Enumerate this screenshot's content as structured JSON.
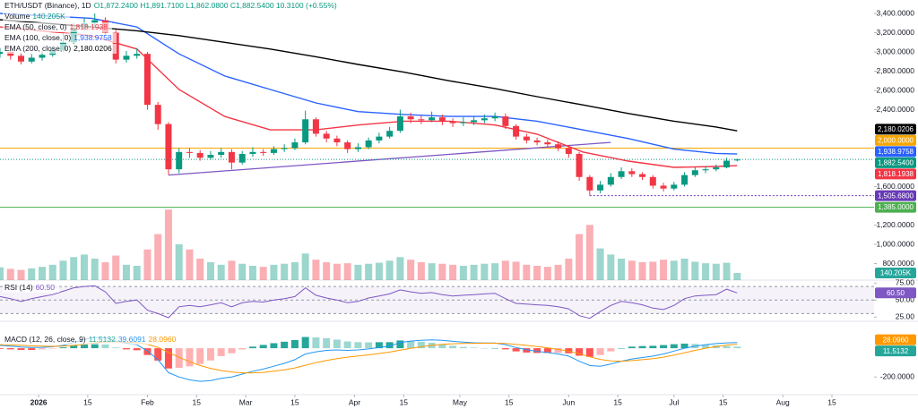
{
  "chart_data": {
    "type": "candlestick",
    "title": "ETH/USDT (Binance), 1D",
    "ohlc_text": "O1,872.2400 H1,891.7100 L1,862.0800 C1,882.5400 10.3100 (+0.55%)",
    "x": [
      -11,
      -8,
      -5,
      -2,
      1,
      4,
      7,
      10,
      13,
      16,
      19,
      22,
      25,
      28,
      31,
      34,
      37,
      40,
      43,
      46,
      49,
      52,
      55,
      58,
      61,
      64,
      67,
      70,
      73,
      76,
      79,
      82,
      85,
      88,
      91,
      94,
      97,
      100,
      103,
      106,
      109,
      112,
      115,
      118,
      121,
      124,
      127,
      130,
      133,
      136,
      139,
      142,
      145,
      148,
      151,
      154,
      157,
      160,
      163,
      166,
      169,
      172,
      175,
      178,
      181,
      184,
      187,
      190,
      193,
      196,
      199
    ],
    "open": [
      2980,
      3000,
      2960,
      2900,
      2940,
      2970,
      3020,
      3100,
      3250,
      3300,
      3330,
      3200,
      2920,
      2960,
      2980,
      2450,
      2250,
      1780,
      1960,
      1950,
      1900,
      1930,
      1960,
      1850,
      1940,
      1960,
      1950,
      1990,
      2000,
      2060,
      2300,
      2150,
      2100,
      2060,
      1990,
      2010,
      2080,
      2120,
      2180,
      2330,
      2300,
      2290,
      2320,
      2280,
      2260,
      2270,
      2290,
      2310,
      2330,
      2230,
      2120,
      2080,
      2060,
      2040,
      2000,
      1940,
      1700,
      1560,
      1620,
      1700,
      1760,
      1730,
      1700,
      1610,
      1580,
      1620,
      1720,
      1770,
      1780,
      1800,
      1872.24
    ],
    "high": [
      3040,
      3050,
      2990,
      2980,
      3010,
      3060,
      3200,
      3300,
      3360,
      3400,
      3360,
      3230,
      3010,
      3040,
      3000,
      2480,
      2270,
      2000,
      2000,
      1980,
      1970,
      2000,
      1990,
      1970,
      2010,
      1990,
      2020,
      2040,
      2100,
      2390,
      2320,
      2180,
      2130,
      2080,
      2050,
      2110,
      2160,
      2220,
      2400,
      2370,
      2340,
      2380,
      2350,
      2310,
      2320,
      2330,
      2350,
      2370,
      2360,
      2250,
      2150,
      2110,
      2090,
      2070,
      2030,
      1960,
      1720,
      1660,
      1740,
      1800,
      1790,
      1750,
      1720,
      1640,
      1650,
      1750,
      1800,
      1810,
      1830,
      1900,
      1891.71
    ],
    "low": [
      2940,
      2920,
      2870,
      2880,
      2910,
      2950,
      3000,
      3080,
      3220,
      3270,
      3170,
      2880,
      2890,
      2930,
      2400,
      2190,
      1720,
      1740,
      1900,
      1870,
      1880,
      1900,
      1780,
      1830,
      1910,
      1920,
      1930,
      1960,
      1980,
      2040,
      2120,
      2060,
      2020,
      1950,
      1960,
      1990,
      2050,
      2100,
      2160,
      2260,
      2250,
      2270,
      2240,
      2220,
      2230,
      2240,
      2260,
      2280,
      2200,
      2090,
      2050,
      2030,
      2010,
      1970,
      1900,
      1660,
      1505.68,
      1530,
      1600,
      1680,
      1700,
      1670,
      1580,
      1550,
      1560,
      1600,
      1700,
      1740,
      1760,
      1790,
      1862.08
    ],
    "close": [
      3000,
      2960,
      2900,
      2940,
      2970,
      3020,
      3100,
      3250,
      3300,
      3330,
      3200,
      2920,
      2960,
      2980,
      2450,
      2250,
      1780,
      1960,
      1950,
      1900,
      1930,
      1960,
      1850,
      1940,
      1960,
      1950,
      1990,
      2000,
      2060,
      2300,
      2150,
      2100,
      2060,
      1990,
      2010,
      2080,
      2120,
      2180,
      2330,
      2300,
      2290,
      2320,
      2280,
      2260,
      2270,
      2290,
      2310,
      2330,
      2230,
      2120,
      2080,
      2060,
      2040,
      2000,
      1940,
      1700,
      1560,
      1620,
      1700,
      1760,
      1730,
      1700,
      1610,
      1580,
      1620,
      1720,
      1770,
      1780,
      1800,
      1870,
      1882.54
    ],
    "up_color": "#089981",
    "down_color": "#f23645",
    "xlim": [
      -11,
      238
    ],
    "xticks": [
      {
        "value": 0,
        "label": "2026"
      },
      {
        "value": 14,
        "label": "15"
      },
      {
        "value": 31,
        "label": "Feb"
      },
      {
        "value": 45,
        "label": "15"
      },
      {
        "value": 59,
        "label": "Mar"
      },
      {
        "value": 73,
        "label": "15"
      },
      {
        "value": 90,
        "label": "Apr"
      },
      {
        "value": 104,
        "label": "15"
      },
      {
        "value": 120,
        "label": "May"
      },
      {
        "value": 134,
        "label": "15"
      },
      {
        "value": 151,
        "label": "Jun"
      },
      {
        "value": 165,
        "label": "15"
      },
      {
        "value": 181,
        "label": "Jul"
      },
      {
        "value": 195,
        "label": "15"
      },
      {
        "value": 212,
        "label": "Aug"
      },
      {
        "value": 226,
        "label": "15"
      }
    ],
    "ylim": [
      628,
      3540
    ],
    "yticks": [
      {
        "value": 3400,
        "label": "3,400.0000"
      },
      {
        "value": 3200,
        "label": "3,200.0000"
      },
      {
        "value": 3000,
        "label": "3,000.0000"
      },
      {
        "value": 2800,
        "label": "2,800.0000"
      },
      {
        "value": 2600,
        "label": "2,600.0000"
      },
      {
        "value": 2400,
        "label": "2,400.0000"
      },
      {
        "value": 1600,
        "label": "1,600.0000"
      },
      {
        "value": 1200,
        "label": "1,200.0000"
      },
      {
        "value": 1000,
        "label": "1,000.0000"
      },
      {
        "value": 800,
        "label": "800.0000"
      }
    ],
    "last_price": {
      "value": 1882.54,
      "label": "1,882.5400",
      "color": "#089981"
    },
    "overlays": [
      {
        "name": "EMA (50, close, 0)",
        "value_label": "1,818.1938",
        "color": "#f23645",
        "x": [
          -11,
          15,
          28,
          40,
          53,
          66,
          79,
          91,
          104,
          117,
          130,
          142,
          155,
          168,
          181,
          193,
          199
        ],
        "values": [
          3260,
          3170,
          3030,
          2610,
          2330,
          2190,
          2190,
          2240,
          2280,
          2280,
          2240,
          2145,
          1960,
          1865,
          1800,
          1810,
          1818.1938
        ]
      },
      {
        "name": "EMA (100, close, 0)",
        "value_label": "1,938.9758",
        "color": "#2962ff",
        "x": [
          -11,
          15,
          28,
          40,
          53,
          66,
          79,
          91,
          104,
          117,
          130,
          142,
          155,
          168,
          181,
          193,
          199
        ],
        "values": [
          3400,
          3350,
          3260,
          2980,
          2750,
          2610,
          2470,
          2380,
          2350,
          2330,
          2330,
          2280,
          2190,
          2100,
          1990,
          1945,
          1938.9758
        ]
      },
      {
        "name": "EMA (200, close, 0)",
        "value_label": "2,180.0206",
        "color": "#000000",
        "x": [
          -11,
          15,
          28,
          40,
          53,
          66,
          79,
          91,
          104,
          117,
          130,
          142,
          155,
          168,
          181,
          193,
          199
        ],
        "values": [
          3335,
          3260,
          3220,
          3170,
          3100,
          3030,
          2950,
          2870,
          2790,
          2700,
          2620,
          2535,
          2450,
          2360,
          2280,
          2220,
          2180.0206
        ]
      }
    ],
    "levels": [
      {
        "value": 2000,
        "label": "2,000.0000",
        "color": "#f7a600"
      },
      {
        "value": 1385,
        "label": "1,385.0000",
        "color": "#4caf50"
      },
      {
        "value": 1505.68,
        "label": "1,505.6800",
        "color": "#673ab7",
        "x_start": 157
      }
    ],
    "trendline": {
      "x": [
        37,
        163
      ],
      "values": [
        1720,
        2060
      ],
      "color": "#7e57c2"
    },
    "volume": {
      "name": "Volume",
      "value_label": "140.205K",
      "color": "#26a69a",
      "ylim": [
        0,
        1400
      ],
      "values": [
        250,
        220,
        200,
        230,
        260,
        300,
        380,
        450,
        500,
        420,
        350,
        480,
        300,
        280,
        600,
        900,
        1380,
        700,
        600,
        420,
        350,
        300,
        380,
        320,
        280,
        260,
        300,
        320,
        350,
        520,
        400,
        350,
        320,
        330,
        300,
        320,
        340,
        380,
        450,
        400,
        350,
        330,
        320,
        300,
        280,
        300,
        320,
        330,
        380,
        360,
        300,
        280,
        260,
        300,
        420,
        900,
        1080,
        620,
        500,
        420,
        380,
        350,
        360,
        400,
        380,
        420,
        360,
        330,
        320,
        340,
        140.205
      ]
    },
    "rsi": {
      "name": "RSI (14)",
      "value_label": "60.50",
      "color": "#7e57c2",
      "ylim": [
        20,
        78
      ],
      "yticks": [
        {
          "value": 75,
          "label": "75.00"
        },
        {
          "value": 50,
          "label": "50.00"
        },
        {
          "value": 25,
          "label": "25.00"
        }
      ],
      "bands": [
        70,
        50,
        30
      ],
      "values": [
        55,
        52,
        48,
        52,
        55,
        58,
        63,
        68,
        70,
        71,
        62,
        45,
        48,
        50,
        35,
        30,
        24,
        40,
        42,
        40,
        43,
        46,
        40,
        46,
        48,
        47,
        50,
        52,
        55,
        68,
        57,
        53,
        50,
        46,
        48,
        53,
        56,
        59,
        65,
        62,
        60,
        61,
        58,
        56,
        57,
        58,
        59,
        60,
        52,
        45,
        44,
        43,
        42,
        40,
        37,
        27,
        23,
        33,
        42,
        48,
        46,
        43,
        38,
        36,
        42,
        52,
        56,
        57,
        58,
        66,
        60.5
      ]
    },
    "macd": {
      "name": "MACD (12, 26, close, 9)",
      "ylim": [
        -323,
        181
      ],
      "yticks": [
        {
          "value": -200,
          "label": "-200.0000"
        }
      ],
      "line": {
        "value_label": "39.6091",
        "color": "#2196f3",
        "values": [
          20,
          15,
          8,
          5,
          6,
          10,
          20,
          40,
          60,
          75,
          72,
          50,
          35,
          25,
          -20,
          -80,
          -170,
          -200,
          -220,
          -230,
          -225,
          -210,
          -200,
          -180,
          -160,
          -145,
          -125,
          -105,
          -80,
          -40,
          -25,
          -15,
          -12,
          -15,
          -12,
          -5,
          5,
          15,
          40,
          50,
          55,
          58,
          55,
          48,
          42,
          38,
          36,
          36,
          25,
          5,
          -10,
          -22,
          -30,
          -40,
          -55,
          -90,
          -120,
          -125,
          -110,
          -90,
          -75,
          -65,
          -55,
          -40,
          -20,
          0,
          15,
          25,
          32,
          37,
          39.6091
        ]
      },
      "signal": {
        "value_label": "28.0960",
        "color": "#ff9800",
        "values": [
          25,
          23,
          20,
          17,
          14,
          13,
          14,
          19,
          27,
          37,
          44,
          45,
          43,
          39,
          27,
          6,
          -29,
          -63,
          -94,
          -120,
          -140,
          -155,
          -165,
          -171,
          -171,
          -168,
          -160,
          -150,
          -137,
          -118,
          -100,
          -85,
          -72,
          -62,
          -54,
          -46,
          -37,
          -27,
          -14,
          -1,
          10,
          20,
          27,
          31,
          33,
          34,
          35,
          35,
          33,
          27,
          20,
          11,
          3,
          -8,
          -20,
          -38,
          -60,
          -78,
          -88,
          -90,
          -86,
          -80,
          -72,
          -62,
          -48,
          -32,
          -15,
          0,
          12,
          22,
          28.096
        ]
      },
      "histogram": {
        "value_label": "11.5132",
        "up_color": "#26a69a",
        "down_color": "#ff5252",
        "values": [
          -5,
          -8,
          -12,
          -12,
          -8,
          -3,
          6,
          21,
          33,
          38,
          28,
          5,
          -8,
          -14,
          -47,
          -86,
          -141,
          -137,
          -126,
          -110,
          -85,
          -55,
          -35,
          -9,
          11,
          23,
          35,
          45,
          57,
          78,
          75,
          70,
          60,
          47,
          42,
          41,
          42,
          42,
          54,
          51,
          45,
          38,
          28,
          17,
          9,
          4,
          1,
          1,
          -8,
          -22,
          -30,
          -33,
          -33,
          -32,
          -35,
          -52,
          -60,
          -47,
          -22,
          0,
          11,
          15,
          17,
          22,
          28,
          32,
          30,
          25,
          20,
          15,
          11.5132
        ]
      }
    }
  }
}
